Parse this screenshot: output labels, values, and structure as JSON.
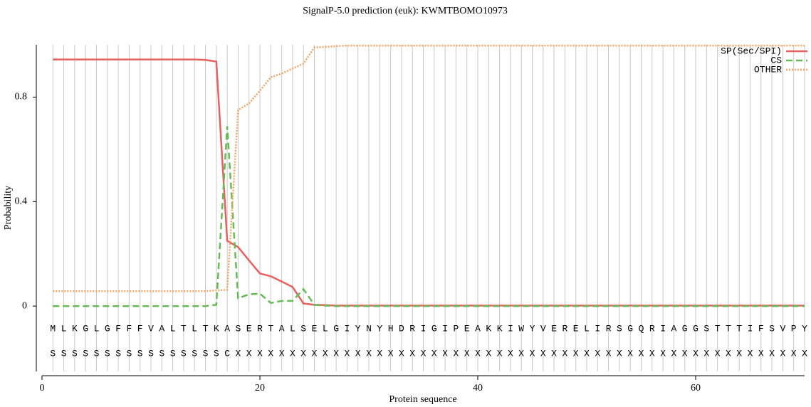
{
  "chart_data": {
    "type": "line",
    "title": "SignalP-5.0 prediction (euk):  KWMTBOMO10973",
    "x_label": "Protein sequence",
    "y_label": "Probability",
    "xlim": [
      0,
      70
    ],
    "xticks": [
      0,
      20,
      40,
      60
    ],
    "ylim": [
      -0.25,
      1.0
    ],
    "yticks": [
      0,
      0.4,
      0.8
    ],
    "grid": true,
    "legend": "upper right",
    "x": [
      1,
      2,
      3,
      4,
      5,
      6,
      7,
      8,
      9,
      10,
      11,
      12,
      13,
      14,
      15,
      16,
      17,
      18,
      19,
      20,
      21,
      22,
      23,
      24,
      25,
      26,
      27,
      28,
      29,
      30,
      31,
      32,
      33,
      34,
      35,
      36,
      37,
      38,
      39,
      40,
      41,
      42,
      43,
      44,
      45,
      46,
      47,
      48,
      49,
      50,
      51,
      52,
      53,
      54,
      55,
      56,
      57,
      58,
      59,
      60,
      61,
      62,
      63,
      64,
      65,
      66,
      67,
      68,
      69,
      70
    ],
    "residues": [
      "M",
      "L",
      "K",
      "G",
      "L",
      "G",
      "F",
      "F",
      "F",
      "V",
      "A",
      "L",
      "T",
      "L",
      "T",
      "K",
      "A",
      "S",
      "E",
      "R",
      "T",
      "A",
      "L",
      "S",
      "E",
      "L",
      "G",
      "I",
      "Y",
      "N",
      "Y",
      "H",
      "D",
      "R",
      "I",
      "G",
      "I",
      "P",
      "E",
      "A",
      "K",
      "K",
      "I",
      "W",
      "Y",
      "V",
      "E",
      "R",
      "E",
      "L",
      "I",
      "R",
      "S",
      "G",
      "Q",
      "R",
      "I",
      "A",
      "G",
      "G",
      "S",
      "T",
      "T",
      "T",
      "I",
      "F",
      "S",
      "V",
      "P",
      "Y"
    ],
    "labels": [
      "S",
      "S",
      "S",
      "S",
      "S",
      "S",
      "S",
      "S",
      "S",
      "S",
      "S",
      "S",
      "S",
      "S",
      "S",
      "S",
      "C",
      "X",
      "X",
      "X",
      "X",
      "X",
      "X",
      "X",
      "X",
      "X",
      "X",
      "X",
      "X",
      "X",
      "X",
      "X",
      "X",
      "X",
      "X",
      "X",
      "X",
      "X",
      "X",
      "X",
      "X",
      "X",
      "X",
      "X",
      "X",
      "X",
      "X",
      "X",
      "X",
      "X",
      "X",
      "X",
      "X",
      "X",
      "X",
      "X",
      "X",
      "X",
      "X",
      "X",
      "X",
      "X",
      "X",
      "X",
      "X",
      "X",
      "X",
      "X",
      "X",
      "X"
    ],
    "series": [
      {
        "name": "SP(Sec/SPI)",
        "color": "#e8605f",
        "dash": "solid",
        "values": [
          0.944,
          0.944,
          0.944,
          0.944,
          0.944,
          0.944,
          0.944,
          0.944,
          0.944,
          0.944,
          0.944,
          0.944,
          0.944,
          0.944,
          0.942,
          0.936,
          0.25,
          0.226,
          0.175,
          0.125,
          0.114,
          0.094,
          0.073,
          0.01,
          0.005,
          0.004,
          0.002,
          0.002,
          0.002,
          0.002,
          0.002,
          0.002,
          0.002,
          0.002,
          0.002,
          0.002,
          0.002,
          0.002,
          0.002,
          0.002,
          0.002,
          0.002,
          0.002,
          0.002,
          0.002,
          0.002,
          0.002,
          0.002,
          0.002,
          0.002,
          0.002,
          0.002,
          0.002,
          0.002,
          0.002,
          0.002,
          0.002,
          0.002,
          0.002,
          0.002,
          0.002,
          0.002,
          0.002,
          0.002,
          0.002,
          0.002,
          0.002,
          0.002,
          0.002,
          0.002
        ]
      },
      {
        "name": "CS",
        "color": "#66bb55",
        "dash": "dashed",
        "values": [
          0,
          0,
          0,
          0,
          0,
          0,
          0,
          0,
          0,
          0,
          0,
          0,
          0,
          0,
          0,
          0.005,
          0.688,
          0.03,
          0.045,
          0.048,
          0.012,
          0.02,
          0.02,
          0.065,
          0.005,
          0.002,
          0,
          0,
          0,
          0,
          0,
          0,
          0,
          0,
          0,
          0,
          0,
          0,
          0,
          0,
          0,
          0,
          0,
          0,
          0,
          0,
          0,
          0,
          0,
          0,
          0,
          0,
          0,
          0,
          0,
          0,
          0,
          0,
          0,
          0,
          0,
          0,
          0,
          0,
          0,
          0,
          0,
          0,
          0,
          0
        ]
      },
      {
        "name": "OTHER",
        "color": "#f4a460",
        "dash": "dotted",
        "values": [
          0.057,
          0.057,
          0.057,
          0.057,
          0.057,
          0.057,
          0.057,
          0.057,
          0.057,
          0.057,
          0.057,
          0.057,
          0.057,
          0.057,
          0.057,
          0.06,
          0.062,
          0.75,
          0.776,
          0.824,
          0.876,
          0.89,
          0.909,
          0.928,
          0.99,
          0.992,
          0.995,
          0.997,
          0.997,
          0.997,
          0.997,
          0.997,
          0.997,
          0.997,
          0.997,
          0.997,
          0.997,
          0.997,
          0.997,
          0.997,
          0.997,
          0.997,
          0.997,
          0.997,
          0.997,
          0.997,
          0.997,
          0.997,
          0.997,
          0.997,
          0.997,
          0.997,
          0.997,
          0.997,
          0.997,
          0.997,
          0.997,
          0.997,
          0.997,
          0.997,
          0.997,
          0.997,
          0.997,
          0.997,
          0.997,
          0.997,
          0.997,
          0.997,
          0.997,
          0.997
        ]
      }
    ]
  }
}
